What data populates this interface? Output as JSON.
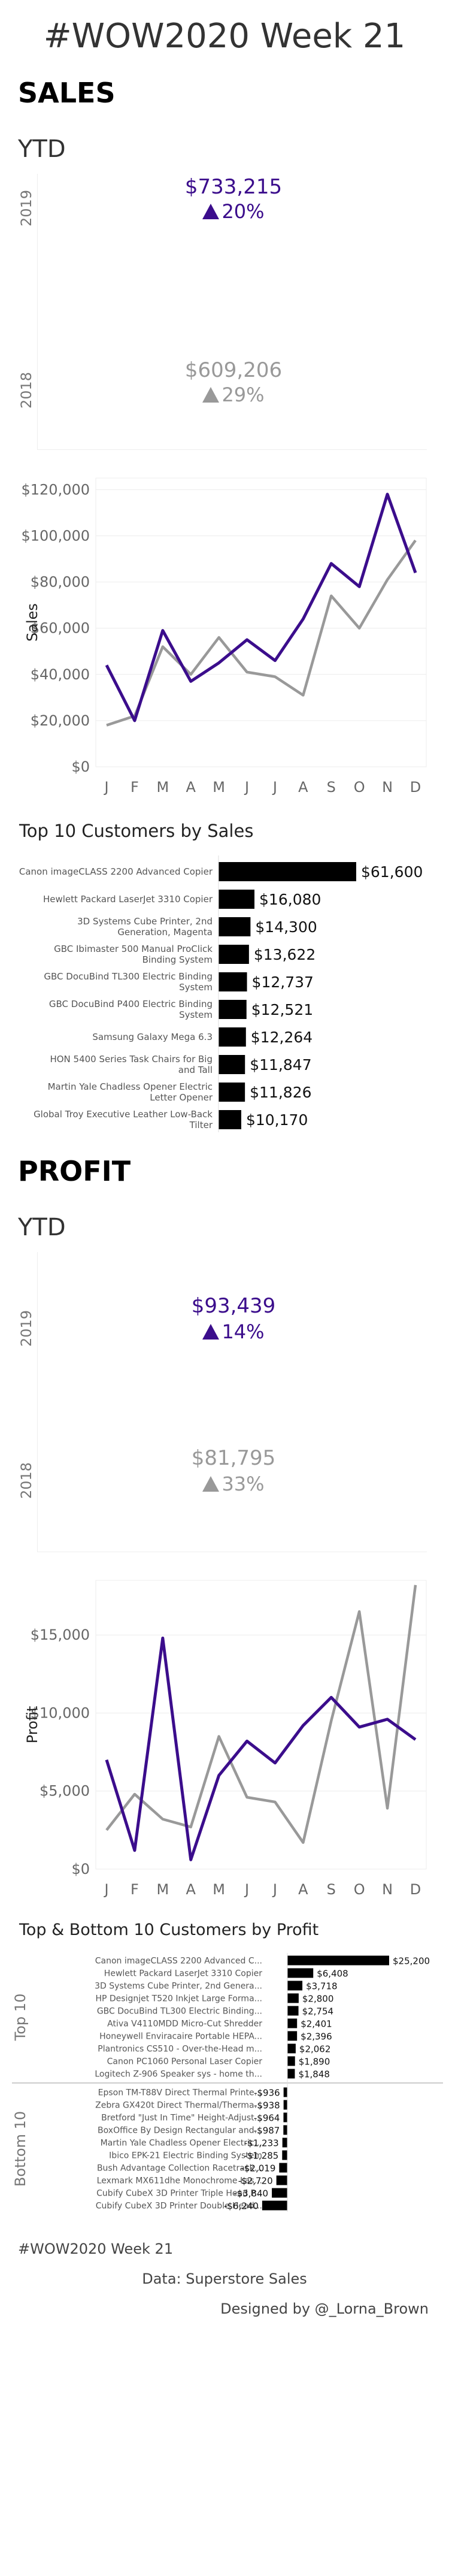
{
  "page": {
    "title": "#WOW2020 Week 21",
    "sales_heading": "SALES",
    "ytd_label": "YTD",
    "profit_heading": "PROFIT"
  },
  "colors": {
    "current": "#3b0d8c",
    "previous": "#999999",
    "bar": "#000000"
  },
  "sales_kpi": {
    "y2019": {
      "year": "2019",
      "value": "$733,215",
      "pct": "20%",
      "direction": "up"
    },
    "y2018": {
      "year": "2018",
      "value": "$609,206",
      "pct": "29%",
      "direction": "up"
    }
  },
  "profit_kpi": {
    "y2019": {
      "year": "2019",
      "value": "$93,439",
      "pct": "14%",
      "direction": "up"
    },
    "y2018": {
      "year": "2018",
      "value": "$81,795",
      "pct": "33%",
      "direction": "up"
    }
  },
  "top10_title": "Top 10 Customers by Sales",
  "topbottom_title": "Top & Bottom 10 Customers by Profit",
  "footer": {
    "tag": "#WOW2020 Week 21",
    "source": "Data: Superstore Sales",
    "credit": "Designed by @_Lorna_Brown"
  },
  "chart_data": [
    {
      "type": "line",
      "ylabel": "Sales",
      "x": [
        "J",
        "F",
        "M",
        "A",
        "M",
        "J",
        "J",
        "A",
        "S",
        "O",
        "N",
        "D"
      ],
      "yticks": [
        "$0",
        "$20,000",
        "$40,000",
        "$60,000",
        "$80,000",
        "$100,000",
        "$120,000"
      ],
      "ylim": [
        0,
        125000
      ],
      "series": [
        {
          "color": "#999999",
          "values": [
            18000,
            22000,
            52000,
            40000,
            56000,
            41000,
            39000,
            31000,
            74000,
            60000,
            81000,
            98000
          ]
        },
        {
          "color": "#3b0d8c",
          "values": [
            44000,
            20000,
            59000,
            37000,
            45000,
            55000,
            46000,
            64000,
            88000,
            78000,
            118000,
            84000
          ]
        }
      ]
    },
    {
      "type": "bar",
      "title": "Top 10 Customers by Sales",
      "categories": [
        "Canon imageCLASS 2200 Advanced Copier",
        "Hewlett Packard LaserJet 3310 Copier",
        "3D Systems Cube Printer, 2nd Generation, Magenta",
        "GBC Ibimaster 500 Manual ProClick Binding System",
        "GBC DocuBind TL300 Electric Binding System",
        "GBC DocuBind P400 Electric Binding System",
        "Samsung Galaxy Mega 6.3",
        "HON 5400 Series Task Chairs for Big and Tall",
        "Martin Yale Chadless Opener Electric Letter Opener",
        "Global Troy Executive Leather Low-Back Tilter"
      ],
      "values": [
        61600,
        16080,
        14300,
        13622,
        12737,
        12521,
        12264,
        11847,
        11826,
        10170
      ],
      "labels": [
        "$61,600",
        "$16,080",
        "$14,300",
        "$13,622",
        "$12,737",
        "$12,521",
        "$12,264",
        "$11,847",
        "$11,826",
        "$10,170"
      ]
    },
    {
      "type": "line",
      "ylabel": "Profit",
      "x": [
        "J",
        "F",
        "M",
        "A",
        "M",
        "J",
        "J",
        "A",
        "S",
        "O",
        "N",
        "D"
      ],
      "yticks": [
        "$0",
        "$5,000",
        "$10,000",
        "$15,000"
      ],
      "ylim": [
        0,
        18500
      ],
      "series": [
        {
          "color": "#999999",
          "values": [
            2500,
            4800,
            3200,
            2700,
            8500,
            4600,
            4300,
            1700,
            9500,
            16500,
            3900,
            18200
          ]
        },
        {
          "color": "#3b0d8c",
          "values": [
            7000,
            1200,
            14800,
            600,
            6000,
            8200,
            6800,
            9200,
            11000,
            9100,
            9600,
            8300
          ]
        }
      ]
    },
    {
      "type": "bar",
      "title": "Top & Bottom 10 Customers by Profit",
      "groups": [
        {
          "name": "Top 10",
          "categories": [
            "Canon imageCLASS 2200 Advanced C...",
            "Hewlett Packard LaserJet 3310 Copier",
            "3D Systems Cube Printer, 2nd Genera...",
            "HP Designjet T520 Inkjet Large Forma...",
            "GBC DocuBind TL300 Electric Binding...",
            "Ativa V4110MDD Micro-Cut Shredder",
            "Honeywell Enviracaire Portable HEPA...",
            "Plantronics CS510 - Over-the-Head m...",
            "Canon PC1060 Personal Laser Copier",
            "Logitech Z-906 Speaker sys - home th..."
          ],
          "values": [
            25200,
            6408,
            3718,
            2800,
            2754,
            2401,
            2396,
            2062,
            1890,
            1848
          ],
          "labels": [
            "$25,200",
            "$6,408",
            "$3,718",
            "$2,800",
            "$2,754",
            "$2,401",
            "$2,396",
            "$2,062",
            "$1,890",
            "$1,848"
          ]
        },
        {
          "name": "Bottom 10",
          "categories": [
            "Epson TM-T88V Direct Thermal Printe...",
            "Zebra GX420t Direct Thermal/Therma...",
            "Bretford \"Just In Time\" Height-Adjust...",
            "BoxOffice By Design Rectangular and...",
            "Martin Yale Chadless Opener Electric...",
            "Ibico EPK-21 Electric Binding System",
            "Bush Advantage Collection Racetrack...",
            "Lexmark MX611dhe Monochrome Las...",
            "Cubify CubeX 3D Printer Triple Head P...",
            "Cubify CubeX 3D Printer Double Head..."
          ],
          "values": [
            -936,
            -938,
            -964,
            -987,
            -1233,
            -1285,
            -2019,
            -2720,
            -3840,
            -6240
          ],
          "labels": [
            "-$936",
            "-$938",
            "-$964",
            "-$987",
            "-$1,233",
            "-$1,285",
            "-$2,019",
            "-$2,720",
            "-$3,840",
            "-$6,240"
          ]
        }
      ]
    }
  ]
}
